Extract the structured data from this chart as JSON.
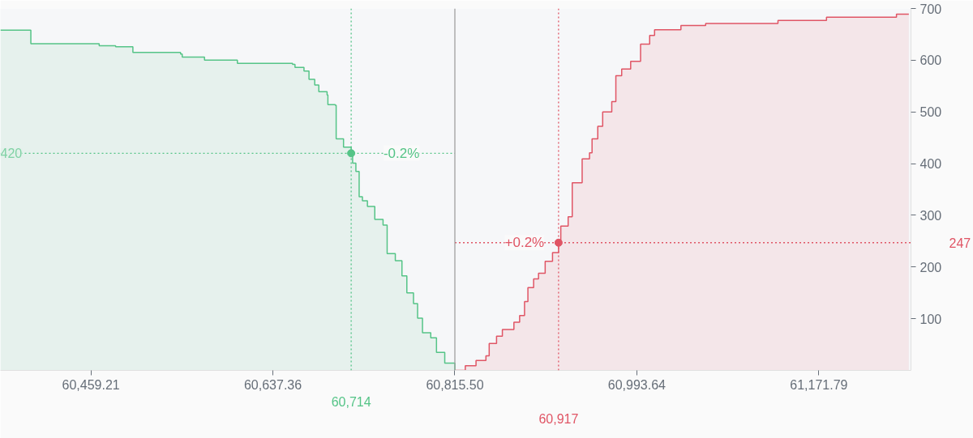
{
  "chart_data": {
    "type": "area",
    "series": [
      {
        "color": "#55c487",
        "x": [
          60370.6,
          60400.4,
          60467.3,
          60483.4,
          60500.3,
          60547.0,
          60548.6,
          60570.4,
          60602.6,
          60656.6,
          60659.0,
          60667.8,
          60672.7,
          60678.3,
          60682.3,
          60690.4,
          60691.2,
          60698.4,
          60699.3,
          60706.5,
          60714,
          60715.4,
          60718.6,
          60721.8,
          60725.0,
          60729.9,
          60737.1,
          60745.2,
          60749.2,
          60757.2,
          60763.7,
          60768.5,
          60775.0,
          60779.0,
          60783.8,
          60791.9,
          60797.5,
          60805.6,
          60815.5
        ],
        "values": [
          658,
          632,
          628,
          626,
          615,
          612,
          606,
          600,
          594,
          592,
          586,
          579,
          563,
          552,
          539,
          533,
          514,
          513,
          448,
          432,
          420,
          401,
          385,
          336,
          328,
          317,
          292,
          281,
          226,
          212,
          183,
          150,
          129,
          101,
          73,
          63,
          35,
          14,
          0
        ]
      },
      {
        "color": "#e05565",
        "x": [
          60815.5,
          60825.7,
          60836.2,
          60845.9,
          60849.1,
          60856.3,
          60862.0,
          60873.3,
          60878.9,
          60883.7,
          60887.0,
          60892.6,
          60897.4,
          60903.9,
          60911.1,
          60917,
          60919.2,
          60926.4,
          60930.4,
          60940.1,
          60947.3,
          60949.8,
          60955.4,
          60960.2,
          60969.1,
          60973.1,
          60978.8,
          60987.6,
          60997.3,
          61006.2,
          61011.0,
          61036.8,
          61061.0,
          61131.8,
          61179.3,
          61247.8,
          61259.9
        ],
        "values": [
          0,
          9,
          19,
          28,
          52,
          66,
          79,
          93,
          106,
          133,
          160,
          177,
          188,
          211,
          228,
          247,
          279,
          297,
          363,
          409,
          421,
          448,
          472,
          500,
          520,
          570,
          583,
          598,
          631,
          648,
          659,
          667,
          671,
          677,
          683,
          689,
          689
        ]
      }
    ],
    "xlim": [
      60370.6,
      61262.0
    ],
    "ylim": [
      0,
      700
    ],
    "xticks": [
      {
        "value": 60459.21,
        "label": "60,459.21"
      },
      {
        "value": 60637.36,
        "label": "60,637.36"
      },
      {
        "value": 60815.5,
        "label": "60,815.50"
      },
      {
        "value": 60993.64,
        "label": "60,993.64"
      },
      {
        "value": 61171.79,
        "label": "61,171.79"
      }
    ],
    "yticks": [
      100,
      200,
      300,
      400,
      500,
      600,
      700
    ],
    "grid": false,
    "ref_lines": [
      {
        "axis": "x",
        "value": 60815.5,
        "label": null,
        "color": "#a0a0a0",
        "line_style": "solid"
      },
      {
        "axis": "x",
        "value": 60714,
        "label": "60,714",
        "color": "#55c487",
        "line_style": "dotted"
      },
      {
        "axis": "y",
        "value": 420,
        "label": "420",
        "color": "#55c487",
        "line_style": "dotted"
      },
      {
        "axis": "x",
        "value": 60917,
        "label": "60,917",
        "color": "#e05565",
        "line_style": "dotted"
      },
      {
        "axis": "y",
        "value": 247,
        "label": "247",
        "color": "#e05565",
        "line_style": "dotted"
      }
    ],
    "annotations": [
      {
        "text": "-0.2%",
        "x": 60714,
        "y": 420
      },
      {
        "text": "+0.2%",
        "x": 60917,
        "y": 247
      }
    ]
  }
}
